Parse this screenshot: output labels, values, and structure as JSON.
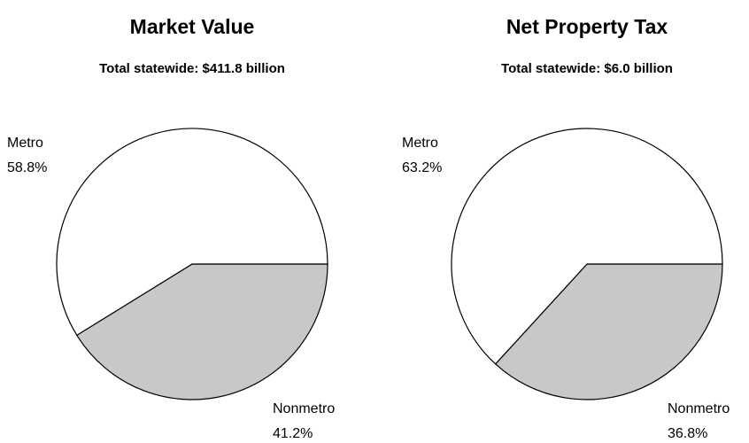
{
  "chart_data": [
    {
      "type": "pie",
      "title": "Market Value",
      "subtitle": "Total statewide: $411.8 billion",
      "categories": [
        "Metro",
        "Nonmetro"
      ],
      "values": [
        58.8,
        41.2
      ],
      "value_labels": [
        "58.8%",
        "41.2%"
      ],
      "colors": [
        "#ffffff",
        "#c8c8c8"
      ]
    },
    {
      "type": "pie",
      "title": "Net Property Tax",
      "subtitle": "Total statewide: $6.0 billion",
      "categories": [
        "Metro",
        "Nonmetro"
      ],
      "values": [
        63.2,
        36.8
      ],
      "value_labels": [
        "63.2%",
        "36.8%"
      ],
      "colors": [
        "#ffffff",
        "#c8c8c8"
      ]
    }
  ]
}
